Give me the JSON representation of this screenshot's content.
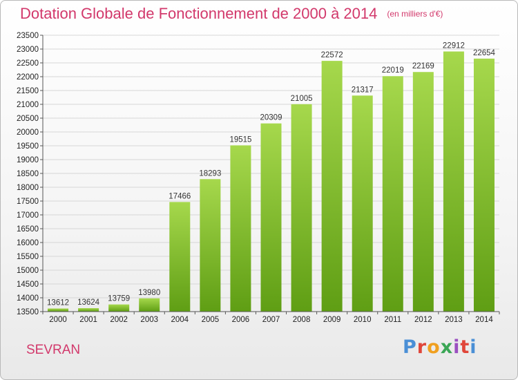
{
  "title": "Dotation Globale de Fonctionnement de 2000 à 2014",
  "subtitle": "(en milliers d'€)",
  "place": "SEVRAN",
  "logo": {
    "text": "Proxiti",
    "colors": [
      "#4a8fd6",
      "#e0463a",
      "#f0a020",
      "#3aa655",
      "#9a4fc0",
      "#e0463a",
      "#4a8fd6"
    ]
  },
  "colors": {
    "bar_top": "#a6d84c",
    "bar_bottom": "#5f9e14",
    "title": "#d2386b"
  },
  "chart_data": {
    "type": "bar",
    "title": "Dotation Globale de Fonctionnement de 2000 à 2014",
    "subtitle": "(en milliers d'€)",
    "categories": [
      "2000",
      "2001",
      "2002",
      "2003",
      "2004",
      "2005",
      "2006",
      "2007",
      "2008",
      "2009",
      "2010",
      "2011",
      "2012",
      "2013",
      "2014"
    ],
    "values": [
      13612,
      13624,
      13759,
      13980,
      17466,
      18293,
      19515,
      20309,
      21005,
      22572,
      21317,
      22019,
      22169,
      22912,
      22654
    ],
    "data_labels": [
      "13612",
      "13624",
      "13759",
      "13980",
      "17466",
      "18293",
      "19515",
      "20309",
      "21005",
      "22572",
      "21317",
      "22019",
      "22169",
      "22912",
      "22654"
    ],
    "ylim": [
      13500,
      23500
    ],
    "yticks": [
      13500,
      14000,
      14500,
      15000,
      15500,
      16000,
      16500,
      17000,
      17500,
      18000,
      18500,
      19000,
      19500,
      20000,
      20500,
      21000,
      21500,
      22000,
      22500,
      23000,
      23500
    ],
    "xlabel": "",
    "ylabel": "",
    "grid": true,
    "legend": "none"
  }
}
